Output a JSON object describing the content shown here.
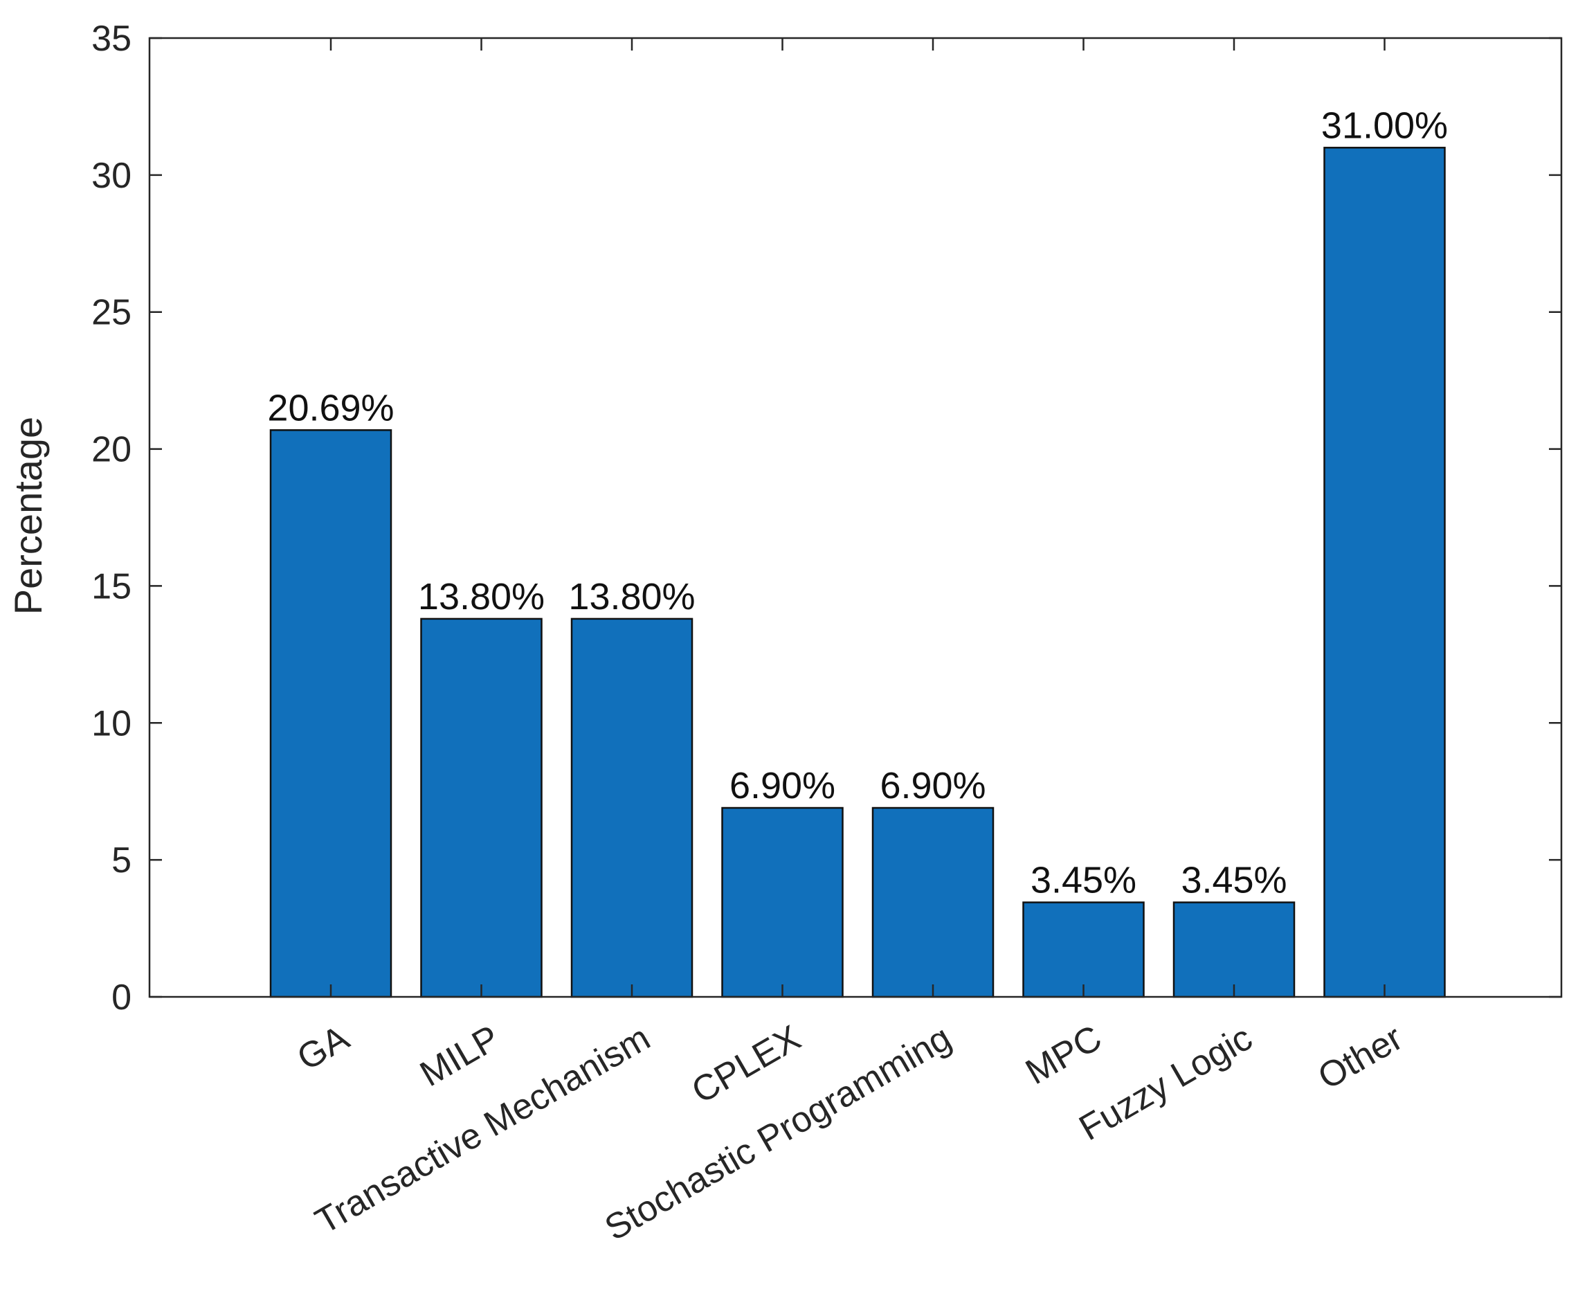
{
  "chart_data": {
    "type": "bar",
    "categories": [
      "GA",
      "MILP",
      "Transactive Mechanism",
      "CPLEX",
      "Stochastic Programming",
      "MPC",
      "Fuzzy Logic",
      "Other"
    ],
    "values": [
      20.69,
      13.8,
      13.8,
      6.9,
      6.9,
      3.45,
      3.45,
      31.0
    ],
    "data_labels": [
      "20.69%",
      "13.80%",
      "13.80%",
      "6.90%",
      "6.90%",
      "3.45%",
      "3.45%",
      "31.00%"
    ],
    "title": "",
    "xlabel": "",
    "ylabel": "Percentage",
    "ylim": [
      0,
      35
    ],
    "yticks": [
      0,
      5,
      10,
      15,
      20,
      25,
      30,
      35
    ],
    "grid": false,
    "colors": {
      "bar_fill": "#1170BB",
      "bar_edge": "#111111",
      "axis": "#262626"
    }
  }
}
